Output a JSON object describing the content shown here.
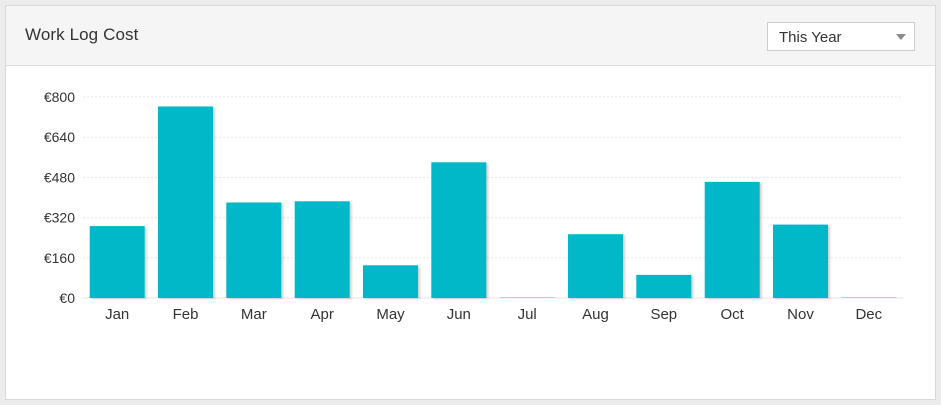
{
  "widget": {
    "title": "Work Log Cost",
    "period_select": {
      "value": "This Year"
    }
  },
  "colors": {
    "bar": "#00b8c8",
    "grid": "#e6e6e6",
    "axis_text": "#333333"
  },
  "chart_data": {
    "type": "bar",
    "title": "",
    "xlabel": "",
    "ylabel": "",
    "currency_symbol": "€",
    "categories": [
      "Jan",
      "Feb",
      "Mar",
      "Apr",
      "May",
      "Jun",
      "Jul",
      "Aug",
      "Sep",
      "Oct",
      "Nov",
      "Dec"
    ],
    "values": [
      286,
      762,
      380,
      385,
      130,
      540,
      0,
      254,
      92,
      462,
      292,
      0
    ],
    "y_ticks": [
      "€0",
      "€160",
      "€320",
      "€480",
      "€640",
      "€800"
    ],
    "ylim": [
      0,
      800
    ],
    "grid": true,
    "legend": "none"
  }
}
